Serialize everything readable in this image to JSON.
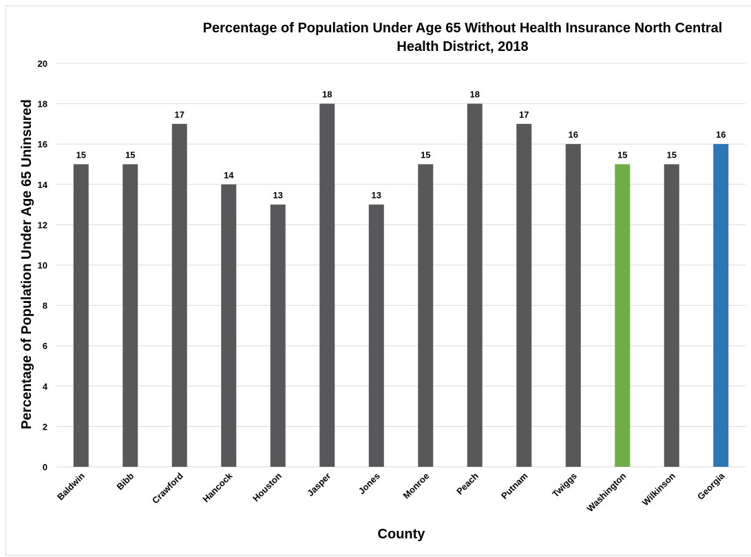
{
  "chart_data": {
    "type": "bar",
    "title": "Percentage of Population Under Age 65 Without Health Insurance North Central Health District, 2018",
    "title_line1": "Percentage of Population Under Age 65 Without Health Insurance North Central",
    "title_line2": "Health District, 2018",
    "xlabel": "County",
    "ylabel": "Percentage of Population Under Age 65 Uninsured",
    "ylim": [
      0,
      20
    ],
    "yticks": [
      0,
      2,
      4,
      6,
      8,
      10,
      12,
      14,
      16,
      18,
      20
    ],
    "grid": true,
    "legend": "none",
    "categories": [
      "Baldwin",
      "Bibb",
      "Crawford",
      "Hancock",
      "Houston",
      "Jasper",
      "Jones",
      "Monroe",
      "Peach",
      "Putnam",
      "Twiggs",
      "Washington",
      "Wilkinson",
      "Georgia"
    ],
    "values": [
      15,
      15,
      17,
      14,
      13,
      18,
      13,
      15,
      18,
      17,
      16,
      15,
      15,
      16
    ],
    "colors": [
      "#58585a",
      "#58585a",
      "#58585a",
      "#58585a",
      "#58585a",
      "#58585a",
      "#58585a",
      "#58585a",
      "#58585a",
      "#58585a",
      "#58585a",
      "#70ad47",
      "#58585a",
      "#2e75b6"
    ],
    "data_labels": true
  }
}
